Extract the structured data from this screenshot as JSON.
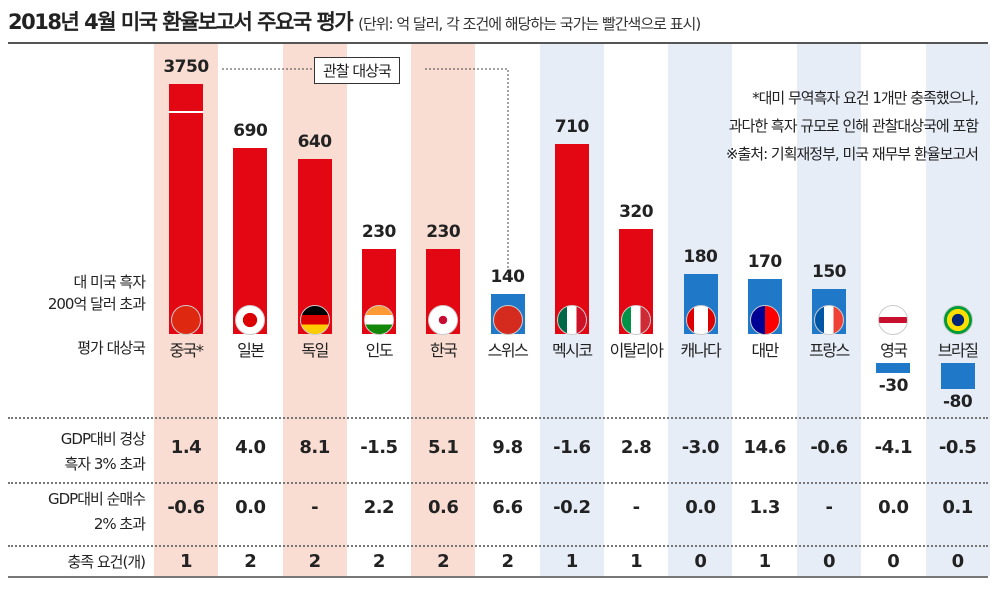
{
  "title": "2018년 4월 미국 환율보고서 주요국 평가",
  "subtitle": "(단위: 억 달러, 각 조건에 해당하는 국가는  빨간색으로 표시)",
  "observation_label": "관찰 대상국",
  "notes": [
    "*대미 무역흑자 요건 1개만 충족했으나,",
    "과다한 흑자 규모로 인해 관찰대상국에 포함",
    "※출처: 기획재정부, 미국 재무부 환율보고서"
  ],
  "row_labels": {
    "surplus": [
      "대 미국 흑자",
      "200억 달러 초과"
    ],
    "countries": "평가 대상국",
    "current_account": [
      "GDP대비 경상",
      "흑자 3% 초과"
    ],
    "net_purchase": [
      "GDP대비 순매수",
      "2% 초과"
    ],
    "met": "충족 요건(개)"
  },
  "colors": {
    "red": "#e30613",
    "blue": "#1f78c8",
    "pink": "#f9ddd2",
    "lightblue": "#e6edf7"
  },
  "chart_data": {
    "type": "bar",
    "title": "2018년 4월 미국 환율보고서 주요국 평가",
    "ylabel": "대 미국 흑자 (억 달러)",
    "categories": [
      "중국*",
      "일본",
      "독일",
      "인도",
      "한국",
      "스위스",
      "멕시코",
      "이탈리아",
      "캐나다",
      "대만",
      "프랑스",
      "영국",
      "브라질"
    ],
    "values": [
      3750,
      690,
      640,
      230,
      230,
      140,
      710,
      320,
      180,
      170,
      150,
      -30,
      -80
    ],
    "value_labels": [
      "3750",
      "690",
      "640",
      "230",
      "230",
      "140",
      "710",
      "320",
      "180",
      "170",
      "150",
      "-30",
      "-80"
    ],
    "bar_colors": [
      "red",
      "red",
      "red",
      "red",
      "red",
      "blue",
      "red",
      "red",
      "blue",
      "blue",
      "blue",
      "blue",
      "blue"
    ],
    "observation": [
      true,
      true,
      true,
      true,
      true,
      true,
      false,
      false,
      false,
      false,
      false,
      false,
      false
    ],
    "shading": [
      "pink",
      "none",
      "pink",
      "none",
      "pink",
      "none",
      "lightblue",
      "none",
      "lightblue",
      "none",
      "lightblue",
      "none",
      "lightblue"
    ],
    "flags": [
      "china",
      "japan",
      "germany",
      "india",
      "korea",
      "switzerland",
      "mexico",
      "italy",
      "canada",
      "taiwan",
      "france",
      "uk",
      "brazil"
    ],
    "current_account": [
      "1.4",
      "4.0",
      "8.1",
      "-1.5",
      "5.1",
      "9.8",
      "-1.6",
      "2.8",
      "-3.0",
      "14.6",
      "-0.6",
      "-4.1",
      "-0.5"
    ],
    "net_purchase": [
      "-0.6",
      "0.0",
      "-",
      "2.2",
      "0.6",
      "6.6",
      "-0.2",
      "-",
      "0.0",
      "1.3",
      "-",
      "0.0",
      "0.1"
    ],
    "requirements_met": [
      "1",
      "2",
      "2",
      "2",
      "2",
      "2",
      "1",
      "1",
      "0",
      "1",
      "0",
      "0",
      "0"
    ]
  }
}
